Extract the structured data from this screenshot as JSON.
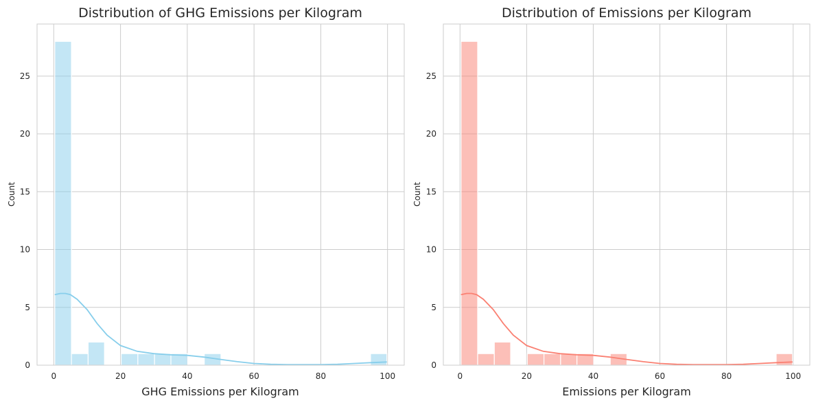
{
  "chart_data": [
    {
      "type": "bar",
      "subtype": "histogram-with-kde",
      "title": "Distribution of GHG Emissions per Kilogram",
      "xlabel": "GHG Emissions per Kilogram",
      "ylabel": "Count",
      "xlim": [
        -5,
        105
      ],
      "ylim": [
        0,
        29.5
      ],
      "xticks": [
        0,
        20,
        40,
        60,
        80,
        100
      ],
      "yticks": [
        0,
        5,
        10,
        15,
        20,
        25
      ],
      "grid": true,
      "bar_color": "#87ceeb",
      "line_color": "#87ceeb",
      "bins": {
        "edges": [
          0.3,
          5.3,
          10.3,
          15.2,
          20.2,
          25.2,
          30.2,
          35.1,
          40.1,
          45.1,
          50.1,
          55.0,
          60.0,
          65.0,
          70.0,
          75.0,
          79.9,
          84.9,
          89.9,
          94.9,
          99.8
        ],
        "counts": [
          28,
          1,
          2,
          0,
          1,
          1,
          1,
          1,
          0,
          1,
          0,
          0,
          0,
          0,
          0,
          0,
          0,
          0,
          0,
          1
        ]
      },
      "kde": {
        "x": [
          0.3,
          2,
          3.5,
          5,
          7,
          10,
          13,
          16,
          20,
          25,
          30,
          35,
          40,
          45,
          50,
          55,
          60,
          65,
          70,
          75,
          80,
          85,
          90,
          95,
          99.8
        ],
        "y": [
          6.1,
          6.2,
          6.2,
          6.1,
          5.7,
          4.8,
          3.6,
          2.6,
          1.7,
          1.2,
          1.0,
          0.9,
          0.85,
          0.7,
          0.5,
          0.3,
          0.15,
          0.08,
          0.05,
          0.05,
          0.05,
          0.08,
          0.15,
          0.22,
          0.28
        ]
      }
    },
    {
      "type": "bar",
      "subtype": "histogram-with-kde",
      "title": "Distribution of Emissions per Kilogram",
      "xlabel": "Emissions per Kilogram",
      "ylabel": "Count",
      "xlim": [
        -5,
        105
      ],
      "ylim": [
        0,
        29.5
      ],
      "xticks": [
        0,
        20,
        40,
        60,
        80,
        100
      ],
      "yticks": [
        0,
        5,
        10,
        15,
        20,
        25
      ],
      "grid": true,
      "bar_color": "#fa8072",
      "line_color": "#fa8072",
      "bins": {
        "edges": [
          0.3,
          5.3,
          10.3,
          15.2,
          20.2,
          25.2,
          30.2,
          35.1,
          40.1,
          45.1,
          50.1,
          55.0,
          60.0,
          65.0,
          70.0,
          75.0,
          79.9,
          84.9,
          89.9,
          94.9,
          99.8
        ],
        "counts": [
          28,
          1,
          2,
          0,
          1,
          1,
          1,
          1,
          0,
          1,
          0,
          0,
          0,
          0,
          0,
          0,
          0,
          0,
          0,
          1
        ]
      },
      "kde": {
        "x": [
          0.3,
          2,
          3.5,
          5,
          7,
          10,
          13,
          16,
          20,
          25,
          30,
          35,
          40,
          45,
          50,
          55,
          60,
          65,
          70,
          75,
          80,
          85,
          90,
          95,
          99.8
        ],
        "y": [
          6.1,
          6.2,
          6.2,
          6.1,
          5.7,
          4.8,
          3.6,
          2.6,
          1.7,
          1.2,
          1.0,
          0.9,
          0.85,
          0.7,
          0.5,
          0.3,
          0.15,
          0.08,
          0.05,
          0.05,
          0.05,
          0.08,
          0.15,
          0.22,
          0.28
        ]
      }
    }
  ]
}
